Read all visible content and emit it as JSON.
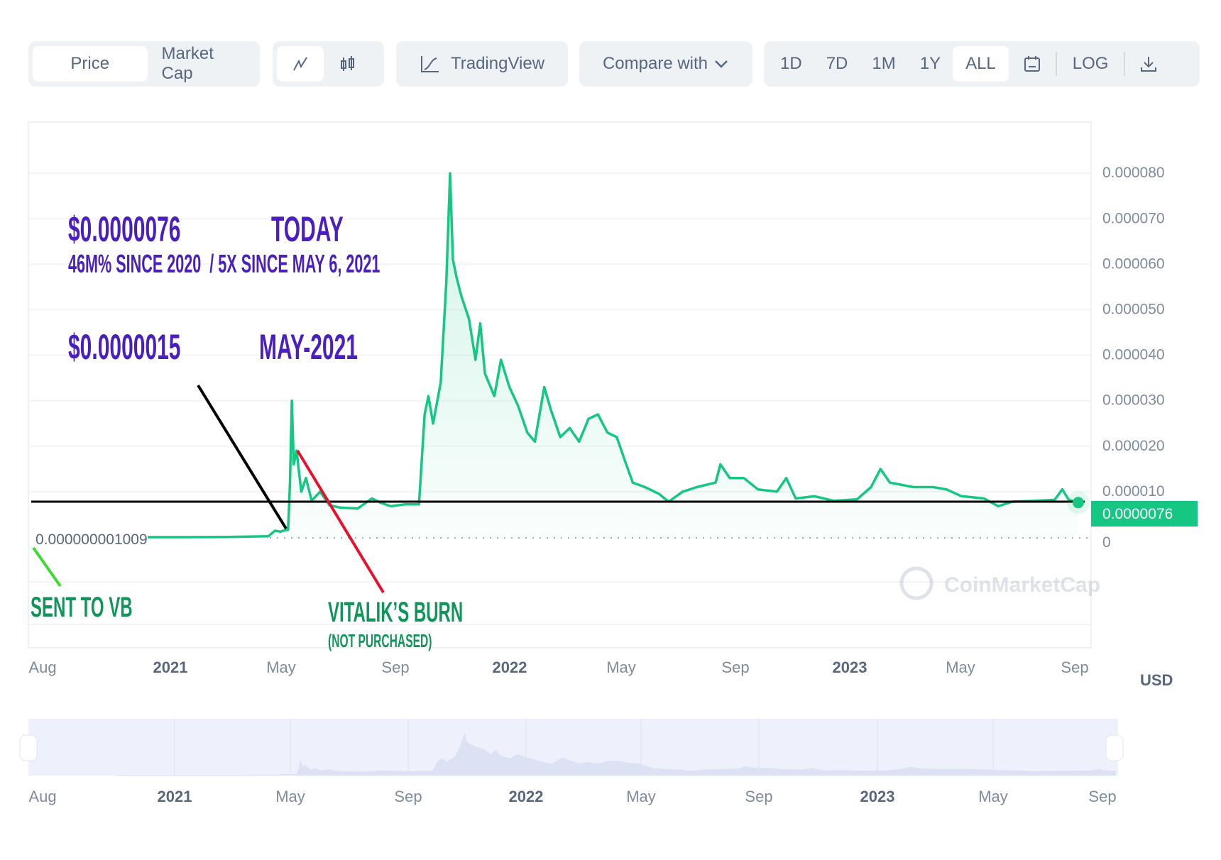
{
  "toolbar": {
    "price_label": "Price",
    "market_cap_label": "Market Cap",
    "line_chart_icon": "line-chart-icon",
    "candle_icon": "candlestick-icon",
    "tradingview_label": "TradingView",
    "compare_label": "Compare with",
    "ranges": [
      "1D",
      "7D",
      "1M",
      "1Y",
      "ALL"
    ],
    "active_range": "ALL",
    "calendar_icon": "calendar-icon",
    "log_label": "LOG",
    "download_icon": "download-icon"
  },
  "annotations": {
    "today_price": "$0.0000076",
    "today_label": "TODAY",
    "today_sub": "46M% SINCE 2020  / 5X SINCE MAY 6, 2021",
    "may_price": "$0.0000015",
    "may_label": "MAY-2021",
    "sent_label": "SENT TO VB",
    "burn_label": "VITALIK’S BURN",
    "burn_sub": "(NOT PURCHASED)",
    "start_price_label": "0.000000001009"
  },
  "watermark": "CoinMarketCap",
  "colors": {
    "line": "#16c784",
    "annotation_purple": "#4a1fbe",
    "annotation_green": "#12955a",
    "red_line": "#e8112d",
    "black_line": "#000000"
  },
  "chart_data": {
    "type": "area",
    "currency": "USD",
    "y_ticks": [
      "0",
      "0.000010",
      "0.000020",
      "0.000030",
      "0.000040",
      "0.000050",
      "0.000060",
      "0.000070",
      "0.000080"
    ],
    "ylim": [
      0,
      8.8e-05
    ],
    "x_ticks": [
      "Aug",
      "2021",
      "May",
      "Sep",
      "2022",
      "May",
      "Sep",
      "2023",
      "May",
      "Sep"
    ],
    "navigator_ticks": [
      "Aug",
      "2021",
      "May",
      "Sep",
      "2022",
      "May",
      "Sep",
      "2023",
      "May",
      "Sep"
    ],
    "current_price": "0.0000076",
    "current_value": 7.6e-06,
    "series": [
      {
        "points": [
          [
            "2020-11-01",
            1e-09
          ],
          [
            "2021-01-01",
            1e-09
          ],
          [
            "2021-03-01",
            5e-08
          ],
          [
            "2021-04-15",
            2e-07
          ],
          [
            "2021-04-22",
            1.4e-06
          ],
          [
            "2021-04-28",
            1.2e-06
          ],
          [
            "2021-05-02",
            1.5e-06
          ],
          [
            "2021-05-06",
            1.6e-06
          ],
          [
            "2021-05-08",
            1.2e-05
          ],
          [
            "2021-05-10",
            3e-05
          ],
          [
            "2021-05-12",
            1.6e-05
          ],
          [
            "2021-05-15",
            1.9e-05
          ],
          [
            "2021-05-20",
            1e-05
          ],
          [
            "2021-05-25",
            1.3e-05
          ],
          [
            "2021-06-01",
            8e-06
          ],
          [
            "2021-06-10",
            1e-05
          ],
          [
            "2021-06-20",
            7e-06
          ],
          [
            "2021-07-01",
            6.5e-06
          ],
          [
            "2021-07-20",
            6.3e-06
          ],
          [
            "2021-08-05",
            8.5e-06
          ],
          [
            "2021-08-15",
            7.5e-06
          ],
          [
            "2021-08-25",
            6.8e-06
          ],
          [
            "2021-09-10",
            7.2e-06
          ],
          [
            "2021-09-25",
            7.2e-06
          ],
          [
            "2021-10-01",
            2.7e-05
          ],
          [
            "2021-10-05",
            3.1e-05
          ],
          [
            "2021-10-10",
            2.5e-05
          ],
          [
            "2021-10-18",
            3.4e-05
          ],
          [
            "2021-10-24",
            5.6e-05
          ],
          [
            "2021-10-28",
            8e-05
          ],
          [
            "2021-10-31",
            6.1e-05
          ],
          [
            "2021-11-05",
            5.7e-05
          ],
          [
            "2021-11-10",
            5.3e-05
          ],
          [
            "2021-11-18",
            4.8e-05
          ],
          [
            "2021-11-25",
            3.9e-05
          ],
          [
            "2021-11-30",
            4.7e-05
          ],
          [
            "2021-12-05",
            3.6e-05
          ],
          [
            "2021-12-15",
            3.1e-05
          ],
          [
            "2021-12-22",
            3.9e-05
          ],
          [
            "2022-01-01",
            3.3e-05
          ],
          [
            "2022-01-10",
            2.9e-05
          ],
          [
            "2022-01-20",
            2.3e-05
          ],
          [
            "2022-01-28",
            2.1e-05
          ],
          [
            "2022-02-08",
            3.3e-05
          ],
          [
            "2022-02-15",
            2.8e-05
          ],
          [
            "2022-02-25",
            2.2e-05
          ],
          [
            "2022-03-05",
            2.4e-05
          ],
          [
            "2022-03-15",
            2.1e-05
          ],
          [
            "2022-03-25",
            2.6e-05
          ],
          [
            "2022-04-05",
            2.7e-05
          ],
          [
            "2022-04-15",
            2.3e-05
          ],
          [
            "2022-04-25",
            2.2e-05
          ],
          [
            "2022-05-05",
            1.6e-05
          ],
          [
            "2022-05-12",
            1.2e-05
          ],
          [
            "2022-05-25",
            1.1e-05
          ],
          [
            "2022-06-10",
            9.5e-06
          ],
          [
            "2022-06-20",
            7.8e-06
          ],
          [
            "2022-07-05",
            1e-05
          ],
          [
            "2022-07-20",
            1.1e-05
          ],
          [
            "2022-08-10",
            1.2e-05
          ],
          [
            "2022-08-15",
            1.6e-05
          ],
          [
            "2022-08-25",
            1.3e-05
          ],
          [
            "2022-09-10",
            1.3e-05
          ],
          [
            "2022-09-25",
            1.05e-05
          ],
          [
            "2022-10-15",
            1e-05
          ],
          [
            "2022-10-25",
            1.3e-05
          ],
          [
            "2022-11-05",
            8.5e-06
          ],
          [
            "2022-11-25",
            9e-06
          ],
          [
            "2022-12-15",
            8e-06
          ],
          [
            "2023-01-10",
            8.3e-06
          ],
          [
            "2023-01-25",
            1.1e-05
          ],
          [
            "2023-02-05",
            1.5e-05
          ],
          [
            "2023-02-15",
            1.2e-05
          ],
          [
            "2023-03-10",
            1.1e-05
          ],
          [
            "2023-04-01",
            1.1e-05
          ],
          [
            "2023-04-15",
            1.05e-05
          ],
          [
            "2023-05-01",
            9e-06
          ],
          [
            "2023-05-25",
            8.5e-06
          ],
          [
            "2023-06-10",
            6.8e-06
          ],
          [
            "2023-06-25",
            7.8e-06
          ],
          [
            "2023-07-20",
            8e-06
          ],
          [
            "2023-08-10",
            8.2e-06
          ],
          [
            "2023-08-18",
            1.05e-05
          ],
          [
            "2023-08-25",
            8.2e-06
          ],
          [
            "2023-09-05",
            7.6e-06
          ]
        ]
      }
    ]
  }
}
